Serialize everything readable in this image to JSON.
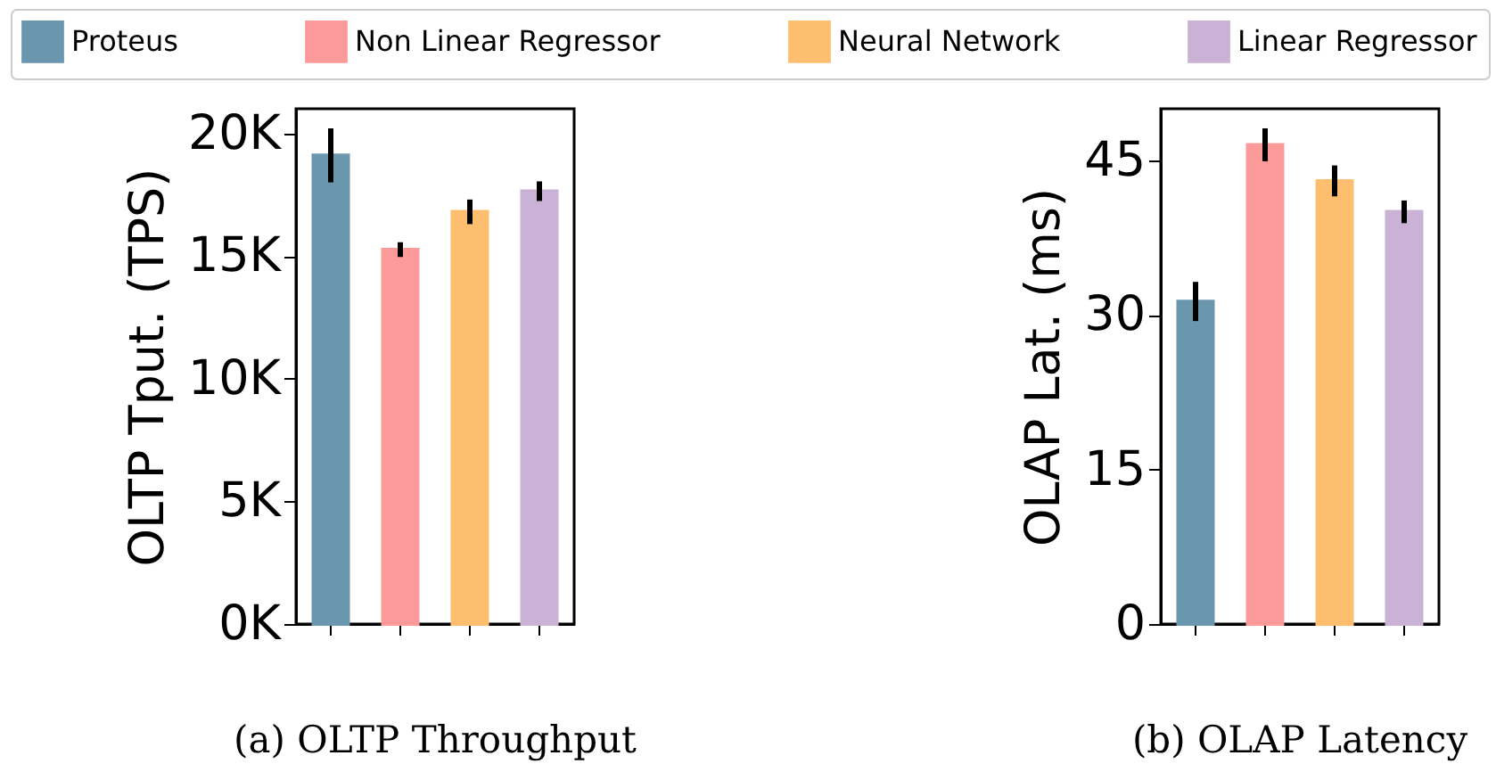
{
  "chart_data": [
    {
      "type": "bar",
      "title": "(a) OLTP Throughput",
      "ylabel": "OLTP Tput. (TPS)",
      "categories": [
        null,
        null,
        null,
        null
      ],
      "legend": "top",
      "ylim": [
        0,
        21000
      ],
      "yticks": [
        {
          "value": 0,
          "label": "0K"
        },
        {
          "value": 5000,
          "label": "5K"
        },
        {
          "value": 10000,
          "label": "10K"
        },
        {
          "value": 15000,
          "label": "15K"
        },
        {
          "value": 20000,
          "label": "20K"
        }
      ],
      "series": [
        {
          "name": "Proteus",
          "color": "#6a96ae",
          "values": [
            19100,
            null,
            null,
            null
          ],
          "errors": [
            1100,
            null,
            null,
            null
          ]
        },
        {
          "name": "Non Linear Regressor",
          "color": "#fb9a99",
          "values": [
            null,
            15260,
            null,
            null
          ],
          "errors": [
            null,
            300,
            null,
            null
          ]
        },
        {
          "name": "Neural Network",
          "color": "#fdbf6f",
          "values": [
            null,
            null,
            16800,
            null
          ],
          "errors": [
            null,
            null,
            500,
            null
          ]
        },
        {
          "name": "Linear Regressor",
          "color": "#cab2d6",
          "values": [
            null,
            null,
            null,
            17640
          ],
          "errors": [
            null,
            null,
            null,
            400
          ]
        }
      ]
    },
    {
      "type": "bar",
      "title": "(b) OLAP Latency",
      "ylabel": "OLAP Lat. (ms)",
      "categories": [
        null,
        null,
        null,
        null
      ],
      "legend": "top",
      "ylim": [
        0,
        50
      ],
      "yticks": [
        0,
        15,
        30,
        45
      ],
      "series": [
        {
          "name": "Proteus",
          "color": "#6a96ae",
          "values": [
            31.3,
            null,
            null,
            null
          ],
          "errors": [
            1.9,
            null,
            null,
            null
          ]
        },
        {
          "name": "Non Linear Regressor",
          "color": "#fb9a99",
          "values": [
            null,
            46.5,
            null,
            null
          ],
          "errors": [
            null,
            1.6,
            null,
            null
          ]
        },
        {
          "name": "Neural Network",
          "color": "#fdbf6f",
          "values": [
            null,
            null,
            43.0,
            null
          ],
          "errors": [
            null,
            null,
            1.5,
            null
          ]
        },
        {
          "name": "Linear Regressor",
          "color": "#cab2d6",
          "values": [
            null,
            null,
            null,
            40.0
          ],
          "errors": [
            null,
            null,
            null,
            1.1
          ]
        }
      ]
    }
  ]
}
